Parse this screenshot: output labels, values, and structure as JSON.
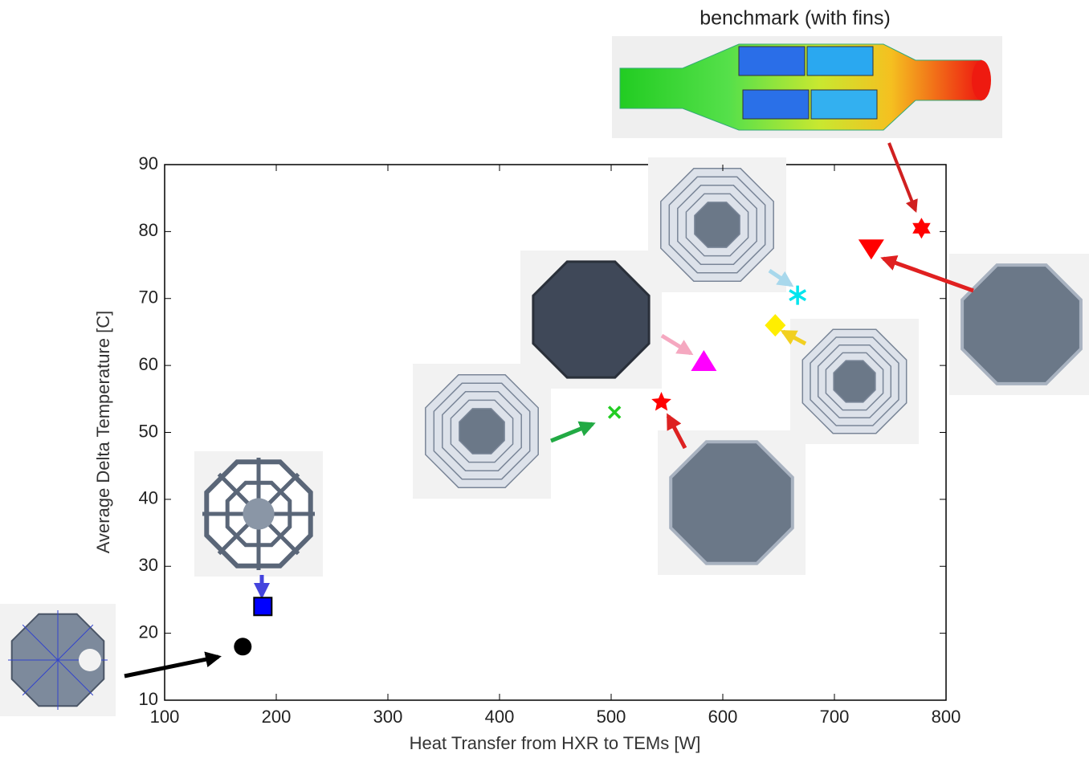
{
  "chart_data": {
    "type": "scatter",
    "annotation": "benchmark (with fins)",
    "xlabel": "Heat Transfer from HXR to TEMs [W]",
    "ylabel": "Average Delta Temperature [C]",
    "xlim": [
      100,
      800
    ],
    "xticks": [
      100,
      200,
      300,
      400,
      500,
      600,
      700,
      800
    ],
    "ylim": [
      10,
      90
    ],
    "yticks": [
      10,
      20,
      30,
      40,
      50,
      60,
      70,
      80,
      90
    ],
    "series": [
      {
        "color": "#000000",
        "marker": "circle",
        "x": [
          170
        ],
        "values": [
          18
        ]
      },
      {
        "color": "#0000ff",
        "marker": "square",
        "x": [
          188
        ],
        "values": [
          24
        ]
      },
      {
        "color": "#22cc22",
        "marker": "x",
        "x": [
          503
        ],
        "values": [
          53
        ]
      },
      {
        "color": "#ff0000",
        "marker": "star",
        "x": [
          545
        ],
        "values": [
          54.5
        ]
      },
      {
        "color": "#ff00ff",
        "marker": "triangle",
        "x": [
          583
        ],
        "values": [
          60.5
        ]
      },
      {
        "color": "#ffee00",
        "marker": "diamond",
        "x": [
          647
        ],
        "values": [
          66
        ]
      },
      {
        "color": "#00e5ee",
        "marker": "asterisk",
        "x": [
          667
        ],
        "values": [
          70.5
        ]
      },
      {
        "color": "#ff0000",
        "marker": "triangle-down",
        "x": [
          733
        ],
        "values": [
          77.5
        ]
      },
      {
        "color": "#ff0000",
        "marker": "hexagram",
        "x": [
          778
        ],
        "values": [
          80.5
        ]
      }
    ]
  }
}
